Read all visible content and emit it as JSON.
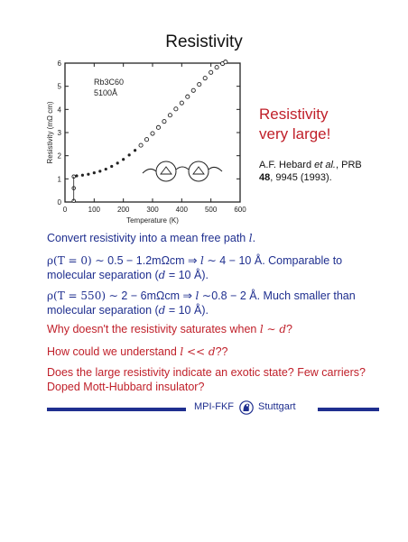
{
  "page": {
    "title": "Resistivity"
  },
  "side": {
    "heading_line1": "Resistivity",
    "heading_line2": "very large!",
    "ref_authors": "A.F. Hebard ",
    "ref_etal": "et al.",
    "ref_journal": ", PRB",
    "ref_volume": "48",
    "ref_pages": ", 9945 (1993)."
  },
  "body": {
    "p1_text": "Convert resistivity into a mean free path ",
    "p1_sym": "l",
    "p1_end": ".",
    "p2_lhs": "ρ(T = 0)",
    "p2_mid": " ∼ 0.5 − 1.2mΩcm ⇒ ",
    "p2_l": "l",
    "p2_rest": " ∼ 4 − 10 Å. Comparable to molecular separation (",
    "p2_d": "d",
    "p2_end": " = 10 Å).",
    "p3_lhs": "ρ(T = 550)",
    "p3_mid": " ∼ 2 − 6mΩcm ⇒ ",
    "p3_l": "l",
    "p3_rest": " ∼0.8 − 2 Å. Much smaller than molecular separation (",
    "p3_d": "d",
    "p3_end": " = 10 Å).",
    "q1_text": "Why doesn't the resistivity saturates when ",
    "q1_math": "l ∼ d",
    "q1_end": "?",
    "q2_text": "How could we understand ",
    "q2_math": "l << d",
    "q2_end": "??",
    "q3": "Does the large resistivity indicate an exotic state? Few carriers? Doped Mott-Hubbard insulator?"
  },
  "footer": {
    "left": "MPI-FKF",
    "right": "Stuttgart",
    "logo_icon": "mpg-minerva-logo-icon",
    "bar_color": "#1f2f8f"
  },
  "colors": {
    "accent_red": "#c0202a",
    "text_blue": "#1f2f8f"
  },
  "chart_data": {
    "type": "scatter",
    "xlabel": "Temperature (K)",
    "ylabel": "Resistivity (mΩ cm)",
    "xlim": [
      0,
      600
    ],
    "ylim": [
      0,
      6
    ],
    "x_ticks": [
      "0",
      "100",
      "200",
      "300",
      "400",
      "500",
      "600"
    ],
    "y_ticks": [
      "0",
      "1",
      "2",
      "3",
      "4",
      "5",
      "6"
    ],
    "annotation_compound": "Rb3C60",
    "annotation_thickness": "5100Å",
    "legend": "none",
    "grid": false,
    "series": [
      {
        "x": [
          30,
          40,
          60,
          80,
          100,
          120,
          140,
          160,
          180,
          200,
          220,
          240,
          260,
          280,
          300,
          320,
          340,
          360,
          380,
          400,
          420,
          440,
          460,
          480,
          500,
          520,
          540,
          550
        ],
        "y": [
          1.12,
          1.13,
          1.16,
          1.2,
          1.26,
          1.33,
          1.42,
          1.54,
          1.68,
          1.84,
          2.03,
          2.23,
          2.45,
          2.7,
          2.96,
          3.22,
          3.48,
          3.75,
          4.02,
          4.28,
          4.55,
          4.82,
          5.08,
          5.35,
          5.6,
          5.82,
          5.98,
          6.05
        ]
      }
    ],
    "drop_points": {
      "x": [
        30,
        30,
        30
      ],
      "y": [
        1.1,
        0.6,
        0.05
      ]
    }
  }
}
